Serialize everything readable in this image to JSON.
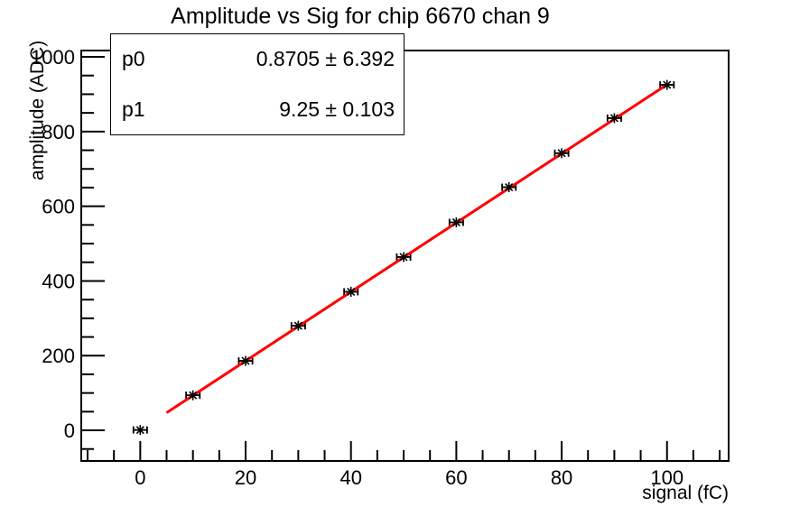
{
  "title": "Amplitude vs Sig for chip 6670 chan 9",
  "stats_box": {
    "rows": [
      {
        "name": "p0",
        "value": "0.8705 ± 6.392"
      },
      {
        "name": "p1",
        "value": "9.25 ± 0.103"
      }
    ]
  },
  "chart_data": {
    "type": "scatter",
    "title": "Amplitude vs Sig for chip 6670 chan 9",
    "xlabel": "signal (fC)",
    "ylabel": "amplitude (ADC)",
    "x": [
      0,
      10,
      20,
      30,
      40,
      50,
      60,
      70,
      80,
      90,
      100
    ],
    "y": [
      1,
      94,
      186,
      280,
      371,
      464,
      557,
      651,
      742,
      836,
      925
    ],
    "xerr": 1.3,
    "xlim": [
      -11.2,
      111.7
    ],
    "ylim": [
      -82,
      1017
    ],
    "xticks": [
      0,
      20,
      40,
      60,
      80,
      100
    ],
    "yticks": [
      0,
      200,
      400,
      600,
      800,
      1000
    ],
    "x_minor_step": 5,
    "y_minor_step": 50,
    "grid": false,
    "legend_position": "stats-box-top-left",
    "marker": "asterisk",
    "marker_color": "#000000",
    "axis_color": "#000000",
    "background_color": "#ffffff",
    "fit": {
      "p0": 0.8705,
      "p0_err": 6.392,
      "p1": 9.25,
      "p1_err": 0.103,
      "range": [
        5,
        100
      ],
      "color": "#ff0000",
      "line_width": 3
    }
  }
}
